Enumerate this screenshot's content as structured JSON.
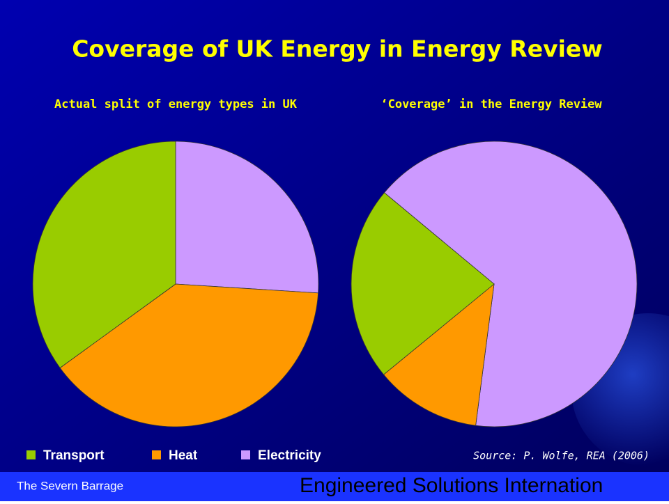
{
  "title": "Coverage of UK Energy in Energy Review",
  "chart_data": [
    {
      "type": "pie",
      "title": "Actual split of energy types in UK",
      "categories": [
        "Electricity",
        "Heat",
        "Transport"
      ],
      "values": [
        26,
        39,
        35
      ],
      "colors": [
        "#cc99ff",
        "#ff9900",
        "#99cc00"
      ]
    },
    {
      "type": "pie",
      "title": "‘Coverage’ in the Energy Review",
      "categories": [
        "Electricity",
        "Heat",
        "Transport"
      ],
      "values": [
        66,
        12,
        22
      ],
      "colors": [
        "#cc99ff",
        "#ff9900",
        "#99cc00"
      ]
    }
  ],
  "source": "Source: P. Wolfe, REA (2006)",
  "footer": {
    "left": "The Severn Barrage",
    "right": "Engineered Solutions Internation"
  }
}
